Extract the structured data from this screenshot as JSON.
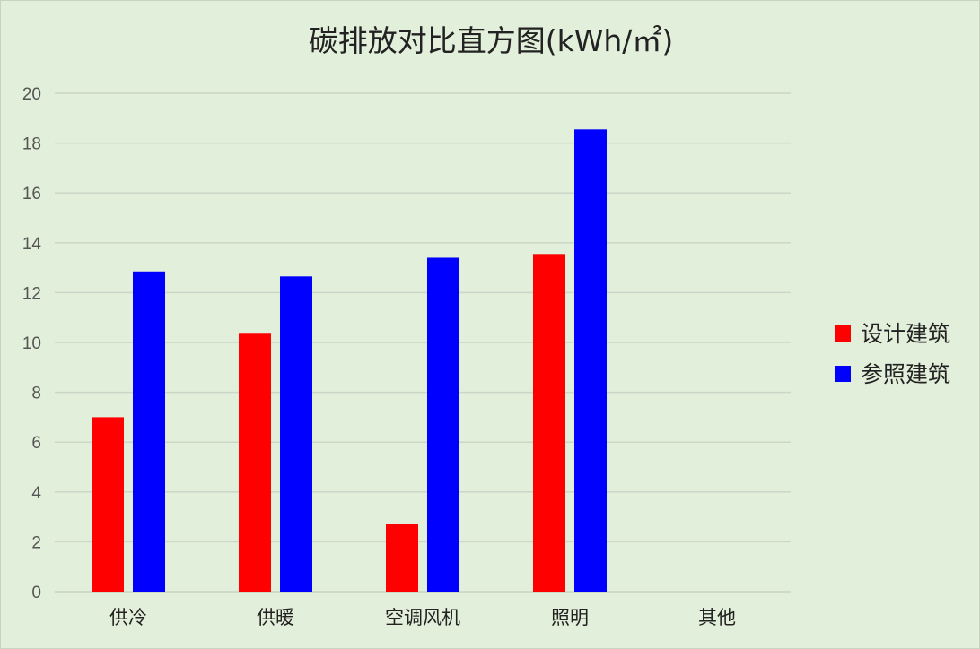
{
  "chart_data": {
    "type": "bar",
    "title": "碳排放对比直方图(kWh/㎡)",
    "categories": [
      "供冷",
      "供暖",
      "空调风机",
      "照明",
      "其他"
    ],
    "series": [
      {
        "name": "设计建筑",
        "color": "#ff0000",
        "values": [
          7.0,
          10.35,
          2.7,
          13.55,
          0
        ]
      },
      {
        "name": "参照建筑",
        "color": "#0000ff",
        "values": [
          12.85,
          12.65,
          13.4,
          18.55,
          0
        ]
      }
    ],
    "ylim": [
      0,
      20
    ],
    "yticks": [
      0,
      2,
      4,
      6,
      8,
      10,
      12,
      14,
      16,
      18,
      20
    ],
    "grid": true,
    "legend_position": "right"
  }
}
